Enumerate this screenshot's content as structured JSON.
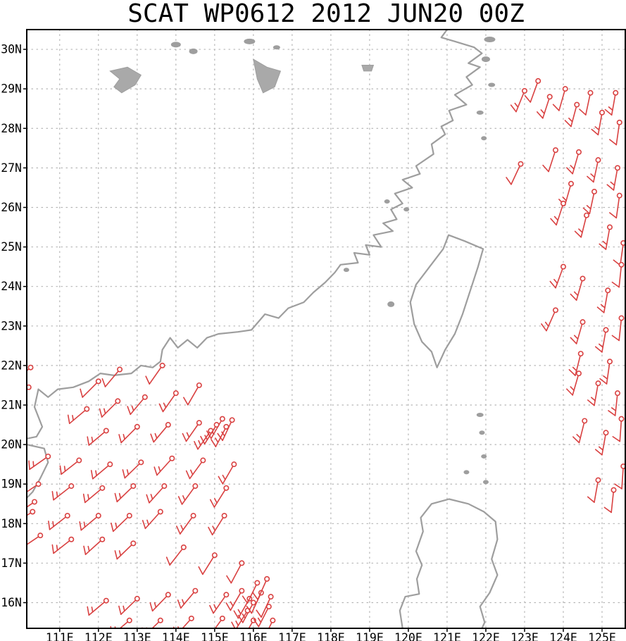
{
  "title": "SCAT WP0612 2012 JUN20 00Z",
  "colors": {
    "wind_barb": "#d94141",
    "coastline": "#9e9e9e",
    "lake_fill": "#a9a9a9",
    "grid": "#b5b5b5",
    "axis": "#000000",
    "background": "#ffffff"
  },
  "chart_data": {
    "type": "map-windbarb",
    "title": "SCAT WP0612 2012 JUN20 00Z",
    "projection": "lon-lat",
    "lon_range": [
      110.15,
      125.6
    ],
    "lat_range": [
      15.35,
      30.5
    ],
    "grid": true,
    "x_ticks": {
      "values": [
        111,
        112,
        113,
        114,
        115,
        116,
        117,
        118,
        119,
        120,
        121,
        122,
        123,
        124,
        125
      ],
      "labels": [
        "111E",
        "112E",
        "113E",
        "114E",
        "115E",
        "116E",
        "117E",
        "118E",
        "119E",
        "120E",
        "121E",
        "122E",
        "123E",
        "124E",
        "125E"
      ]
    },
    "y_ticks": {
      "values": [
        16,
        17,
        18,
        19,
        20,
        21,
        22,
        23,
        24,
        25,
        26,
        27,
        28,
        29,
        30
      ],
      "labels": [
        "16N",
        "17N",
        "18N",
        "19N",
        "20N",
        "21N",
        "22N",
        "23N",
        "24N",
        "25N",
        "26N",
        "27N",
        "28N",
        "29N",
        "30N"
      ]
    },
    "wind_barb_format": [
      "lon",
      "lat",
      "dir_from_deg",
      "speed_kt"
    ],
    "wind_barb_units": "knots",
    "wind_barbs": [
      [
        110.25,
        21.95,
        230,
        15
      ],
      [
        110.2,
        21.45,
        235,
        10
      ],
      [
        112.0,
        21.6,
        225,
        10
      ],
      [
        112.55,
        21.9,
        220,
        10
      ],
      [
        113.65,
        22.0,
        215,
        10
      ],
      [
        111.7,
        20.9,
        230,
        15
      ],
      [
        112.5,
        21.1,
        225,
        15
      ],
      [
        113.2,
        21.2,
        220,
        15
      ],
      [
        114.0,
        21.3,
        215,
        15
      ],
      [
        114.6,
        21.5,
        210,
        10
      ],
      [
        112.2,
        20.35,
        230,
        15
      ],
      [
        113.0,
        20.45,
        225,
        15
      ],
      [
        113.8,
        20.5,
        220,
        15
      ],
      [
        114.6,
        20.55,
        215,
        15
      ],
      [
        115.2,
        20.65,
        210,
        15
      ],
      [
        114.9,
        20.35,
        215,
        15
      ],
      [
        115.3,
        20.45,
        208,
        15
      ],
      [
        115.45,
        20.62,
        205,
        15
      ],
      [
        115.05,
        20.5,
        212,
        15
      ],
      [
        110.7,
        19.7,
        235,
        15
      ],
      [
        111.5,
        19.6,
        232,
        15
      ],
      [
        112.3,
        19.5,
        230,
        15
      ],
      [
        113.1,
        19.55,
        226,
        15
      ],
      [
        113.9,
        19.65,
        222,
        15
      ],
      [
        114.7,
        19.6,
        216,
        15
      ],
      [
        115.5,
        19.5,
        210,
        15
      ],
      [
        110.45,
        19.0,
        236,
        15
      ],
      [
        111.3,
        18.95,
        232,
        15
      ],
      [
        112.1,
        18.9,
        230,
        15
      ],
      [
        112.9,
        18.95,
        226,
        15
      ],
      [
        113.7,
        18.95,
        222,
        15
      ],
      [
        114.5,
        18.95,
        216,
        15
      ],
      [
        115.3,
        18.9,
        212,
        15
      ],
      [
        110.35,
        18.55,
        236,
        10
      ],
      [
        110.3,
        18.3,
        238,
        15
      ],
      [
        111.2,
        18.2,
        232,
        15
      ],
      [
        112.0,
        18.2,
        230,
        15
      ],
      [
        112.8,
        18.2,
        226,
        15
      ],
      [
        113.6,
        18.3,
        222,
        15
      ],
      [
        114.45,
        18.2,
        216,
        15
      ],
      [
        115.25,
        18.2,
        212,
        15
      ],
      [
        110.5,
        17.7,
        236,
        15
      ],
      [
        111.3,
        17.6,
        232,
        15
      ],
      [
        112.1,
        17.6,
        228,
        15
      ],
      [
        112.9,
        17.5,
        226,
        15
      ],
      [
        114.2,
        17.4,
        218,
        10
      ],
      [
        115.0,
        17.2,
        212,
        10
      ],
      [
        115.7,
        17.0,
        208,
        10
      ],
      [
        112.2,
        16.05,
        230,
        15
      ],
      [
        113.0,
        16.1,
        226,
        15
      ],
      [
        113.8,
        16.2,
        224,
        15
      ],
      [
        114.5,
        16.3,
        220,
        15
      ],
      [
        115.3,
        16.2,
        215,
        15
      ],
      [
        115.9,
        16.1,
        210,
        15
      ],
      [
        116.1,
        16.5,
        206,
        10
      ],
      [
        112.8,
        15.55,
        230,
        15
      ],
      [
        113.6,
        15.55,
        226,
        15
      ],
      [
        114.4,
        15.6,
        222,
        15
      ],
      [
        115.2,
        15.6,
        216,
        15
      ],
      [
        116.0,
        15.55,
        210,
        15
      ],
      [
        115.7,
        16.3,
        210,
        15
      ],
      [
        116.0,
        16.0,
        208,
        15
      ],
      [
        115.85,
        15.8,
        212,
        15
      ],
      [
        116.2,
        16.25,
        205,
        10
      ],
      [
        116.4,
        15.9,
        207,
        15
      ],
      [
        116.5,
        15.55,
        206,
        15
      ],
      [
        116.45,
        16.15,
        205,
        10
      ],
      [
        116.35,
        16.6,
        204,
        10
      ],
      [
        123.0,
        28.95,
        202,
        15
      ],
      [
        123.35,
        29.2,
        200,
        10
      ],
      [
        123.65,
        28.8,
        198,
        15
      ],
      [
        124.05,
        29.0,
        196,
        10
      ],
      [
        124.35,
        28.6,
        195,
        15
      ],
      [
        124.7,
        28.9,
        192,
        10
      ],
      [
        125.0,
        28.4,
        190,
        15
      ],
      [
        125.35,
        28.9,
        190,
        15
      ],
      [
        125.45,
        28.15,
        188,
        10
      ],
      [
        122.9,
        27.1,
        205,
        10
      ],
      [
        123.8,
        27.45,
        198,
        10
      ],
      [
        124.4,
        27.4,
        196,
        15
      ],
      [
        124.9,
        27.2,
        192,
        15
      ],
      [
        125.4,
        27.0,
        190,
        15
      ],
      [
        124.2,
        26.6,
        196,
        15
      ],
      [
        124.8,
        26.4,
        192,
        15
      ],
      [
        125.45,
        26.3,
        188,
        10
      ],
      [
        124.0,
        26.1,
        198,
        15
      ],
      [
        124.6,
        25.8,
        194,
        15
      ],
      [
        125.2,
        25.5,
        190,
        15
      ],
      [
        125.55,
        25.1,
        188,
        10
      ],
      [
        124.0,
        24.5,
        200,
        15
      ],
      [
        124.5,
        24.2,
        196,
        15
      ],
      [
        125.15,
        23.9,
        190,
        15
      ],
      [
        125.5,
        24.55,
        186,
        10
      ],
      [
        123.8,
        23.4,
        204,
        15
      ],
      [
        124.5,
        23.1,
        196,
        15
      ],
      [
        125.1,
        22.9,
        190,
        15
      ],
      [
        125.5,
        23.2,
        186,
        10
      ],
      [
        124.45,
        22.3,
        194,
        15
      ],
      [
        125.2,
        22.1,
        188,
        15
      ],
      [
        124.4,
        21.8,
        196,
        15
      ],
      [
        124.9,
        21.55,
        190,
        15
      ],
      [
        125.4,
        21.3,
        186,
        15
      ],
      [
        124.55,
        20.6,
        194,
        15
      ],
      [
        125.1,
        20.3,
        190,
        15
      ],
      [
        125.5,
        20.65,
        184,
        10
      ],
      [
        124.9,
        19.1,
        190,
        10
      ],
      [
        125.3,
        18.85,
        186,
        10
      ],
      [
        125.55,
        19.45,
        184,
        10
      ]
    ],
    "coastlines": [
      [
        [
          121.0,
          30.5
        ],
        [
          120.85,
          30.3
        ],
        [
          121.2,
          30.2
        ],
        [
          121.7,
          30.05
        ],
        [
          121.9,
          29.9
        ],
        [
          121.55,
          29.65
        ],
        [
          121.85,
          29.55
        ],
        [
          121.5,
          29.3
        ],
        [
          121.65,
          29.1
        ],
        [
          121.2,
          28.85
        ],
        [
          121.5,
          28.6
        ],
        [
          121.05,
          28.45
        ],
        [
          121.15,
          28.2
        ],
        [
          120.85,
          28.05
        ],
        [
          120.95,
          27.85
        ],
        [
          120.6,
          27.6
        ],
        [
          120.65,
          27.35
        ],
        [
          120.2,
          27.05
        ],
        [
          120.3,
          26.85
        ],
        [
          119.85,
          26.7
        ],
        [
          120.1,
          26.5
        ],
        [
          119.65,
          26.35
        ],
        [
          119.85,
          26.1
        ],
        [
          119.55,
          25.95
        ],
        [
          119.7,
          25.7
        ],
        [
          119.35,
          25.6
        ],
        [
          119.6,
          25.4
        ],
        [
          119.1,
          25.3
        ],
        [
          119.3,
          25.0
        ],
        [
          118.9,
          25.05
        ],
        [
          119.0,
          24.8
        ],
        [
          118.6,
          24.85
        ],
        [
          118.7,
          24.6
        ],
        [
          118.25,
          24.55
        ],
        [
          118.1,
          24.35
        ],
        [
          117.85,
          24.1
        ],
        [
          117.55,
          23.85
        ],
        [
          117.3,
          23.6
        ],
        [
          116.9,
          23.45
        ],
        [
          116.65,
          23.2
        ],
        [
          116.3,
          23.3
        ],
        [
          115.95,
          22.9
        ],
        [
          115.6,
          22.85
        ],
        [
          115.1,
          22.8
        ],
        [
          114.8,
          22.7
        ],
        [
          114.55,
          22.45
        ],
        [
          114.3,
          22.65
        ],
        [
          114.05,
          22.45
        ],
        [
          113.85,
          22.7
        ],
        [
          113.65,
          22.4
        ],
        [
          113.6,
          22.1
        ],
        [
          113.4,
          21.95
        ],
        [
          113.1,
          22.0
        ],
        [
          112.85,
          21.8
        ],
        [
          112.4,
          21.75
        ],
        [
          112.05,
          21.8
        ],
        [
          111.75,
          21.6
        ],
        [
          111.35,
          21.45
        ],
        [
          110.95,
          21.4
        ],
        [
          110.7,
          21.2
        ],
        [
          110.45,
          21.4
        ],
        [
          110.35,
          20.95
        ],
        [
          110.55,
          20.45
        ],
        [
          110.4,
          20.2
        ],
        [
          110.15,
          20.15
        ]
      ],
      [
        [
          110.15,
          20.0
        ],
        [
          110.6,
          19.9
        ],
        [
          110.7,
          19.55
        ],
        [
          110.5,
          19.15
        ],
        [
          110.3,
          18.8
        ],
        [
          110.15,
          18.65
        ]
      ],
      [
        [
          121.04,
          25.3
        ],
        [
          121.45,
          25.15
        ],
        [
          121.93,
          24.95
        ],
        [
          121.8,
          24.5
        ],
        [
          121.6,
          23.9
        ],
        [
          121.4,
          23.3
        ],
        [
          121.2,
          22.8
        ],
        [
          120.95,
          22.4
        ],
        [
          120.74,
          21.95
        ],
        [
          120.6,
          22.35
        ],
        [
          120.35,
          22.6
        ],
        [
          120.15,
          23.05
        ],
        [
          120.05,
          23.6
        ],
        [
          120.2,
          24.05
        ],
        [
          120.55,
          24.5
        ],
        [
          120.9,
          24.95
        ],
        [
          121.04,
          25.3
        ]
      ],
      [
        [
          119.85,
          15.35
        ],
        [
          119.78,
          15.8
        ],
        [
          119.92,
          16.15
        ],
        [
          120.28,
          16.22
        ],
        [
          120.22,
          16.6
        ],
        [
          120.35,
          16.95
        ],
        [
          120.2,
          17.3
        ],
        [
          120.38,
          17.8
        ],
        [
          120.32,
          18.15
        ],
        [
          120.6,
          18.5
        ],
        [
          121.05,
          18.62
        ],
        [
          121.55,
          18.5
        ],
        [
          121.95,
          18.3
        ],
        [
          122.25,
          18.05
        ],
        [
          122.3,
          17.6
        ],
        [
          122.15,
          17.1
        ],
        [
          122.3,
          16.7
        ],
        [
          122.1,
          16.25
        ],
        [
          121.85,
          15.9
        ],
        [
          121.97,
          15.5
        ],
        [
          121.9,
          15.35
        ]
      ]
    ],
    "lakes": [
      [
        [
          112.3,
          29.45
        ],
        [
          112.75,
          29.55
        ],
        [
          113.1,
          29.35
        ],
        [
          112.95,
          29.1
        ],
        [
          112.6,
          28.9
        ],
        [
          112.4,
          29.05
        ],
        [
          112.55,
          29.25
        ],
        [
          112.3,
          29.45
        ]
      ],
      [
        [
          116.0,
          29.75
        ],
        [
          116.35,
          29.55
        ],
        [
          116.7,
          29.45
        ],
        [
          116.55,
          29.05
        ],
        [
          116.25,
          28.9
        ],
        [
          116.1,
          29.25
        ],
        [
          116.0,
          29.75
        ]
      ],
      [
        [
          118.8,
          29.6
        ],
        [
          119.1,
          29.6
        ],
        [
          119.05,
          29.45
        ],
        [
          118.85,
          29.45
        ],
        [
          118.8,
          29.6
        ]
      ]
    ],
    "small_island_format": [
      "lon",
      "lat",
      "rx_px",
      "ry_px"
    ],
    "small_islands": [
      [
        114.0,
        30.12,
        7,
        4
      ],
      [
        114.45,
        29.95,
        6,
        4
      ],
      [
        115.9,
        30.2,
        8,
        4
      ],
      [
        116.6,
        30.05,
        5,
        3
      ],
      [
        122.1,
        30.25,
        8,
        4
      ],
      [
        122.0,
        29.75,
        6,
        4
      ],
      [
        122.15,
        29.1,
        5,
        3
      ],
      [
        121.85,
        28.4,
        5,
        3
      ],
      [
        121.95,
        27.75,
        4,
        3
      ],
      [
        119.45,
        26.15,
        4,
        3
      ],
      [
        119.95,
        25.95,
        4,
        3
      ],
      [
        118.4,
        24.42,
        4,
        3
      ],
      [
        119.55,
        23.55,
        5,
        4
      ],
      [
        121.85,
        20.75,
        5,
        3
      ],
      [
        121.9,
        20.3,
        4,
        3
      ],
      [
        121.95,
        19.7,
        4,
        3
      ],
      [
        121.5,
        19.3,
        4,
        3
      ],
      [
        122.0,
        19.05,
        4,
        3
      ]
    ]
  }
}
